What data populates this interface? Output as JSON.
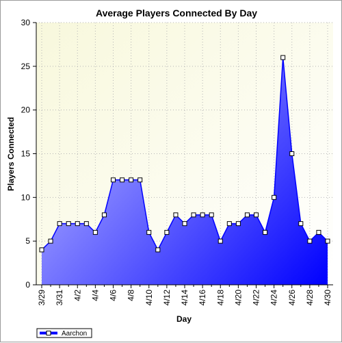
{
  "chart_data": {
    "type": "area",
    "title": "Average Players Connected By Day",
    "xlabel": "Day",
    "ylabel": "Players Connected",
    "ylim": [
      0,
      30
    ],
    "yticks": [
      0,
      5,
      10,
      15,
      20,
      25,
      30
    ],
    "grid": true,
    "legend_position": "bottom-left",
    "x": [
      "3/29",
      "3/30",
      "3/31",
      "4/1",
      "4/2",
      "4/3",
      "4/4",
      "4/5",
      "4/6",
      "4/7",
      "4/8",
      "4/9",
      "4/10",
      "4/11",
      "4/12",
      "4/13",
      "4/14",
      "4/15",
      "4/16",
      "4/17",
      "4/18",
      "4/19",
      "4/20",
      "4/21",
      "4/22",
      "4/23",
      "4/24",
      "4/25",
      "4/26",
      "4/27",
      "4/28",
      "4/29",
      "4/30"
    ],
    "xtick_labels": [
      "3/29",
      "3/31",
      "4/2",
      "4/4",
      "4/6",
      "4/8",
      "4/10",
      "4/12",
      "4/14",
      "4/16",
      "4/18",
      "4/20",
      "4/22",
      "4/24",
      "4/26",
      "4/28",
      "4/30"
    ],
    "series": [
      {
        "name": "Aarchon",
        "color": "#0000ff",
        "values": [
          4,
          5,
          7,
          7,
          7,
          7,
          6,
          8,
          12,
          12,
          12,
          12,
          6,
          4,
          6,
          8,
          7,
          8,
          8,
          8,
          5,
          7,
          7,
          8,
          8,
          6,
          10,
          26,
          15,
          7,
          5,
          6,
          5
        ]
      }
    ]
  }
}
